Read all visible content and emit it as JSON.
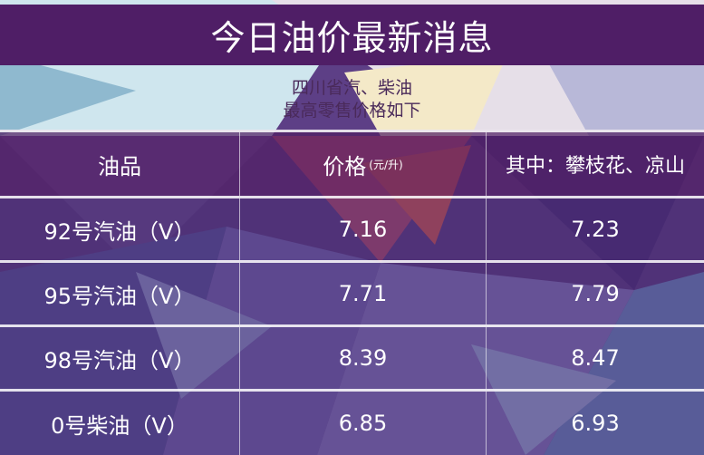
{
  "title": "今日油价最新消息",
  "subtitle": {
    "line1": "四川省汽、柴油",
    "line2": "最高零售价格如下"
  },
  "table": {
    "headers": {
      "product": "油品",
      "price": "价格",
      "unit": "(元/升)",
      "regional": "其中：攀枝花、凉山"
    },
    "rows": [
      {
        "product": "92号汽油（Ⅴ）",
        "price": "7.16",
        "regional": "7.23"
      },
      {
        "product": "95号汽油（Ⅴ）",
        "price": "7.71",
        "regional": "7.79"
      },
      {
        "product": "98号汽油（Ⅴ）",
        "price": "8.39",
        "regional": "8.47"
      },
      {
        "product": "0号柴油（Ⅴ）",
        "price": "6.85",
        "regional": "6.93"
      }
    ]
  },
  "colors": {
    "title_band": "#4f1e66",
    "subtitle_text": "#4a2a5a"
  }
}
